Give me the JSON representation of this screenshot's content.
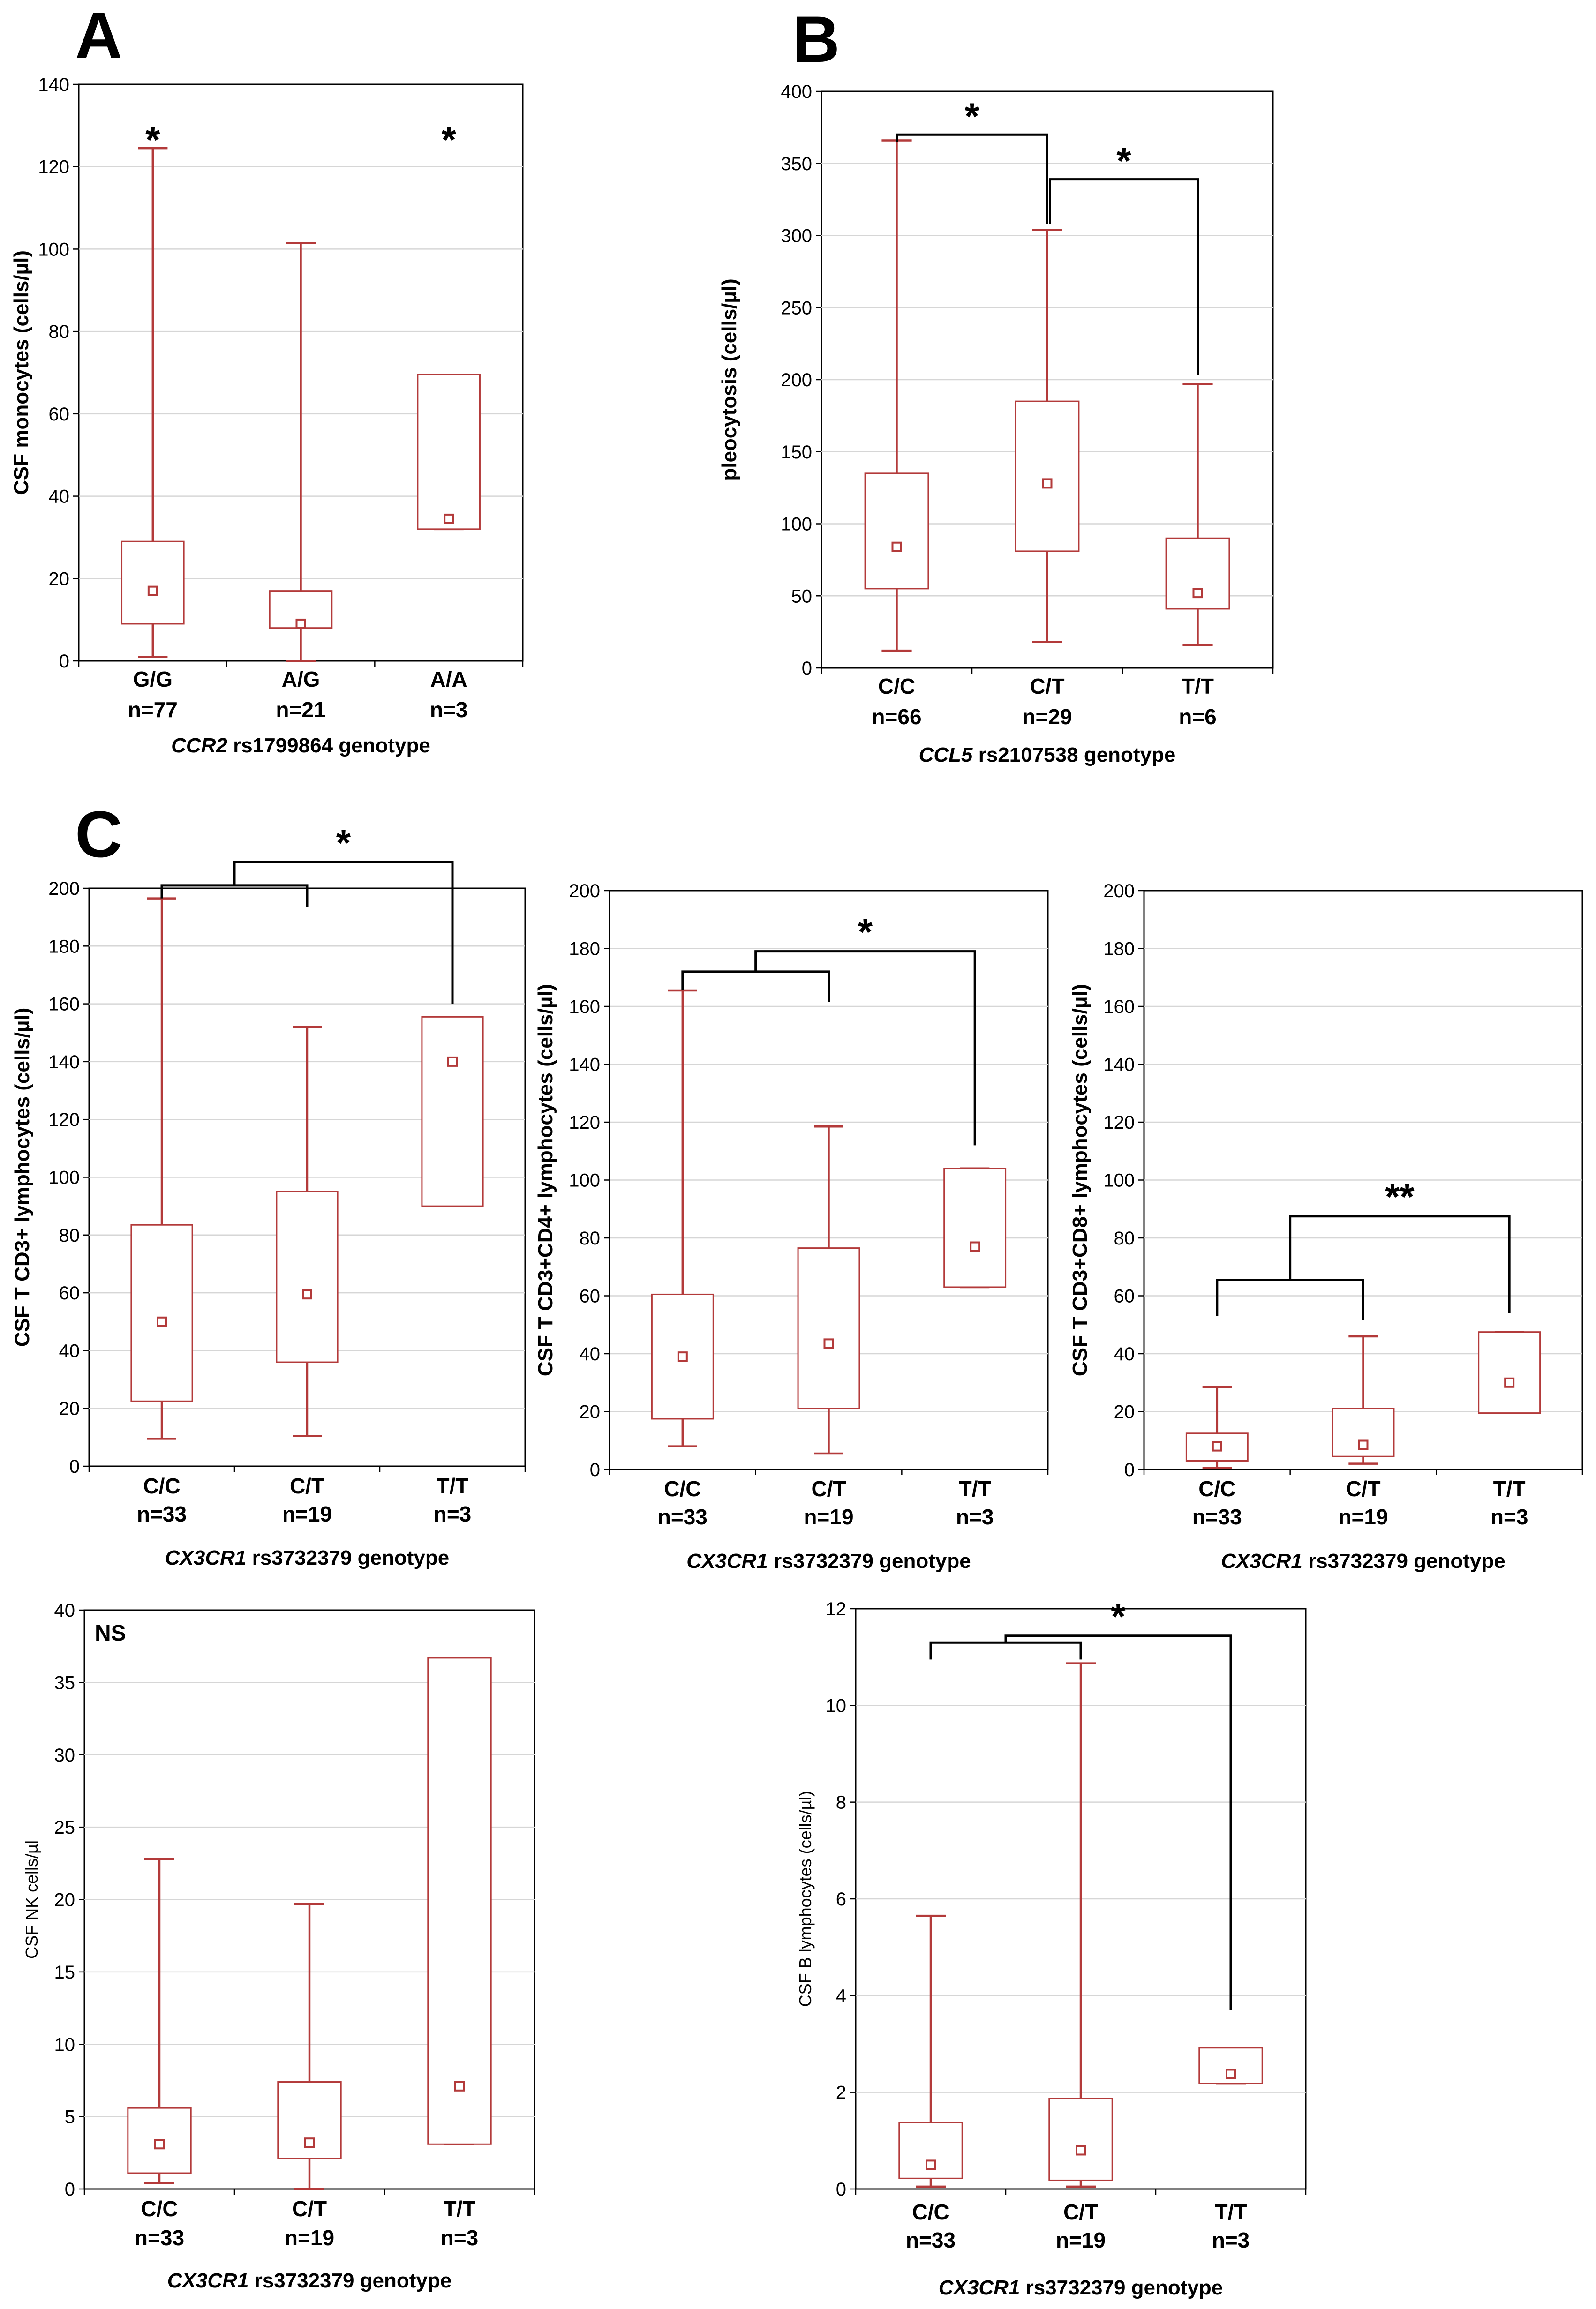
{
  "panel_letters": [
    "A",
    "B",
    "C"
  ],
  "colors": {
    "box": "#b33a3a",
    "grid": "#d6d6d6",
    "text": "#000000"
  },
  "chart_data": [
    {
      "id": "A",
      "type": "boxplot",
      "ylabel": "CSF monocytes (cells/µl)",
      "xlabel_gene": "CCR2",
      "xlabel_rest": " rs1799864 genotype",
      "ylim": [
        0,
        140
      ],
      "yticks": [
        0,
        20,
        40,
        60,
        80,
        100,
        120,
        140
      ],
      "categories": [
        "G/G",
        "A/G",
        "A/A"
      ],
      "counts": [
        "n=77",
        "n=21",
        "n=3"
      ],
      "boxes": [
        {
          "min": 1,
          "q1": 9,
          "median": 17,
          "q3": 29,
          "max": 124.5
        },
        {
          "min": 0,
          "q1": 8,
          "median": 9,
          "q3": 17,
          "max": 101.5
        },
        {
          "min": 32,
          "q1": 32,
          "median": 34.5,
          "q3": 69.5,
          "max": 69.5
        }
      ],
      "annotations": [
        {
          "text": "*",
          "category": 0,
          "value": 128
        },
        {
          "text": "*",
          "category": 2,
          "value": 128
        }
      ],
      "significance": []
    },
    {
      "id": "B",
      "type": "boxplot",
      "ylabel": "pleocytosis (cells/µl)",
      "xlabel_gene": "CCL5",
      "xlabel_rest": " rs2107538 genotype",
      "ylim": [
        0,
        400
      ],
      "yticks": [
        0,
        50,
        100,
        150,
        200,
        250,
        300,
        350,
        400
      ],
      "categories": [
        "C/C",
        "C/T",
        "T/T"
      ],
      "counts": [
        "n=66",
        "n=29",
        "n=6"
      ],
      "boxes": [
        {
          "min": 12,
          "q1": 55,
          "median": 84,
          "q3": 135,
          "max": 366
        },
        {
          "min": 18,
          "q1": 81,
          "median": 128,
          "q3": 185,
          "max": 304
        },
        {
          "min": 16,
          "q1": 41,
          "median": 52,
          "q3": 90,
          "max": 197
        }
      ],
      "annotations": [],
      "significance": [
        {
          "kind": "simple",
          "from": 0,
          "to": 1,
          "y": 370,
          "leftDrop": 365,
          "rightDrop": 308,
          "text": "*"
        },
        {
          "kind": "simple",
          "from": 1,
          "to": 2,
          "y": 339,
          "leftDrop": 308,
          "rightDrop": 203,
          "text": "*"
        }
      ]
    },
    {
      "id": "C1",
      "type": "boxplot",
      "ylabel": "CSF T CD3+ lymphocytes (cells/µl)",
      "xlabel_gene": "CX3CR1",
      "xlabel_rest": " rs3732379 genotype",
      "ylim": [
        0,
        200
      ],
      "yticks": [
        0,
        20,
        40,
        60,
        80,
        100,
        120,
        140,
        160,
        180,
        200
      ],
      "categories": [
        "C/C",
        "C/T",
        "T/T"
      ],
      "counts": [
        "n=33",
        "n=19",
        "n=3"
      ],
      "boxes": [
        {
          "min": 9.5,
          "q1": 22.5,
          "median": 50,
          "q3": 83.5,
          "max": 196.5
        },
        {
          "min": 10.5,
          "q1": 36,
          "median": 59.5,
          "q3": 95,
          "max": 152
        },
        {
          "min": 90,
          "q1": 90,
          "median": 140,
          "q3": 155.5,
          "max": 155.5
        }
      ],
      "annotations": [],
      "significance": [
        {
          "kind": "nested",
          "a": 0,
          "b": 1,
          "c": 2,
          "yInner": 201,
          "yOuter": 209,
          "dropA": 196.5,
          "dropB": 193.5,
          "dropC": 160,
          "text": "*"
        }
      ]
    },
    {
      "id": "C2",
      "type": "boxplot",
      "ylabel": "CSF T CD3+CD4+ lymphocytes (cells/µl)",
      "xlabel_gene": "CX3CR1",
      "xlabel_rest": " rs3732379 genotype",
      "ylim": [
        0,
        200
      ],
      "yticks": [
        0,
        20,
        40,
        60,
        80,
        100,
        120,
        140,
        160,
        180,
        200
      ],
      "categories": [
        "C/C",
        "C/T",
        "T/T"
      ],
      "counts": [
        "n=33",
        "n=19",
        "n=3"
      ],
      "boxes": [
        {
          "min": 8,
          "q1": 17.5,
          "median": 39,
          "q3": 60.5,
          "max": 165.5
        },
        {
          "min": 5.5,
          "q1": 21,
          "median": 43.5,
          "q3": 76.5,
          "max": 118.5
        },
        {
          "min": 63,
          "q1": 63,
          "median": 77,
          "q3": 104,
          "max": 104
        }
      ],
      "annotations": [],
      "significance": [
        {
          "kind": "nested",
          "a": 0,
          "b": 1,
          "c": 2,
          "yInner": 172,
          "yOuter": 179,
          "dropA": 165.5,
          "dropB": 161.5,
          "dropC": 112,
          "text": "*"
        }
      ]
    },
    {
      "id": "C3",
      "type": "boxplot",
      "ylabel": "CSF T CD3+CD8+ lymphocytes (cells/µl)",
      "xlabel_gene": "CX3CR1",
      "xlabel_rest": " rs3732379 genotype",
      "ylim": [
        0,
        200
      ],
      "yticks": [
        0,
        20,
        40,
        60,
        80,
        100,
        120,
        140,
        160,
        180,
        200
      ],
      "categories": [
        "C/C",
        "C/T",
        "T/T"
      ],
      "counts": [
        "n=33",
        "n=19",
        "n=3"
      ],
      "boxes": [
        {
          "min": 0.5,
          "q1": 3,
          "median": 8,
          "q3": 12.5,
          "max": 28.5
        },
        {
          "min": 2,
          "q1": 4.5,
          "median": 8.5,
          "q3": 21,
          "max": 46
        },
        {
          "min": 19.5,
          "q1": 19.5,
          "median": 30,
          "q3": 47.5,
          "max": 47.5
        }
      ],
      "annotations": [],
      "significance": [
        {
          "kind": "nested",
          "a": 0,
          "b": 1,
          "c": 2,
          "yInner": 65.5,
          "yOuter": 87.5,
          "dropA": 53,
          "dropB": 51.5,
          "dropC": 54,
          "text": "**"
        }
      ]
    },
    {
      "id": "C4",
      "type": "boxplot",
      "ylabel": "CSF NK cells/µl",
      "xlabel_gene": "CX3CR1",
      "xlabel_rest": " rs3732379 genotype",
      "ylim": [
        0,
        40
      ],
      "yticks": [
        0,
        5,
        10,
        15,
        20,
        25,
        30,
        35,
        40
      ],
      "categories": [
        "C/C",
        "C/T",
        "T/T"
      ],
      "counts": [
        "n=33",
        "n=19",
        "n=3"
      ],
      "boxes": [
        {
          "min": 0.4,
          "q1": 1.1,
          "median": 3.1,
          "q3": 5.6,
          "max": 22.8
        },
        {
          "min": 0,
          "q1": 2.1,
          "median": 3.2,
          "q3": 7.4,
          "max": 19.7
        },
        {
          "min": 3.1,
          "q1": 3.1,
          "median": 7.1,
          "q3": 36.7,
          "max": 36.7
        }
      ],
      "annotations": [],
      "label_text": "NS",
      "significance": []
    },
    {
      "id": "C5",
      "type": "boxplot",
      "ylabel": "CSF B lymphocytes (cells/µl)",
      "xlabel_gene": "CX3CR1",
      "xlabel_rest": " rs3732379 genotype",
      "ylim": [
        0,
        12
      ],
      "yticks": [
        0,
        2,
        4,
        6,
        8,
        10,
        12
      ],
      "categories": [
        "C/C",
        "C/T",
        "T/T"
      ],
      "counts": [
        "n=33",
        "n=19",
        "n=3"
      ],
      "boxes": [
        {
          "min": 0.05,
          "q1": 0.22,
          "median": 0.5,
          "q3": 1.38,
          "max": 5.65
        },
        {
          "min": 0.05,
          "q1": 0.18,
          "median": 0.8,
          "q3": 1.87,
          "max": 10.87
        },
        {
          "min": 2.18,
          "q1": 2.18,
          "median": 2.38,
          "q3": 2.92,
          "max": 2.92
        }
      ],
      "annotations": [],
      "significance": [
        {
          "kind": "nested",
          "a": 0,
          "b": 1,
          "c": 2,
          "yInner": 11.3,
          "yOuter": 11.44,
          "dropA": 10.95,
          "dropB": 10.95,
          "dropC": 3.7,
          "text": "*"
        }
      ]
    }
  ]
}
